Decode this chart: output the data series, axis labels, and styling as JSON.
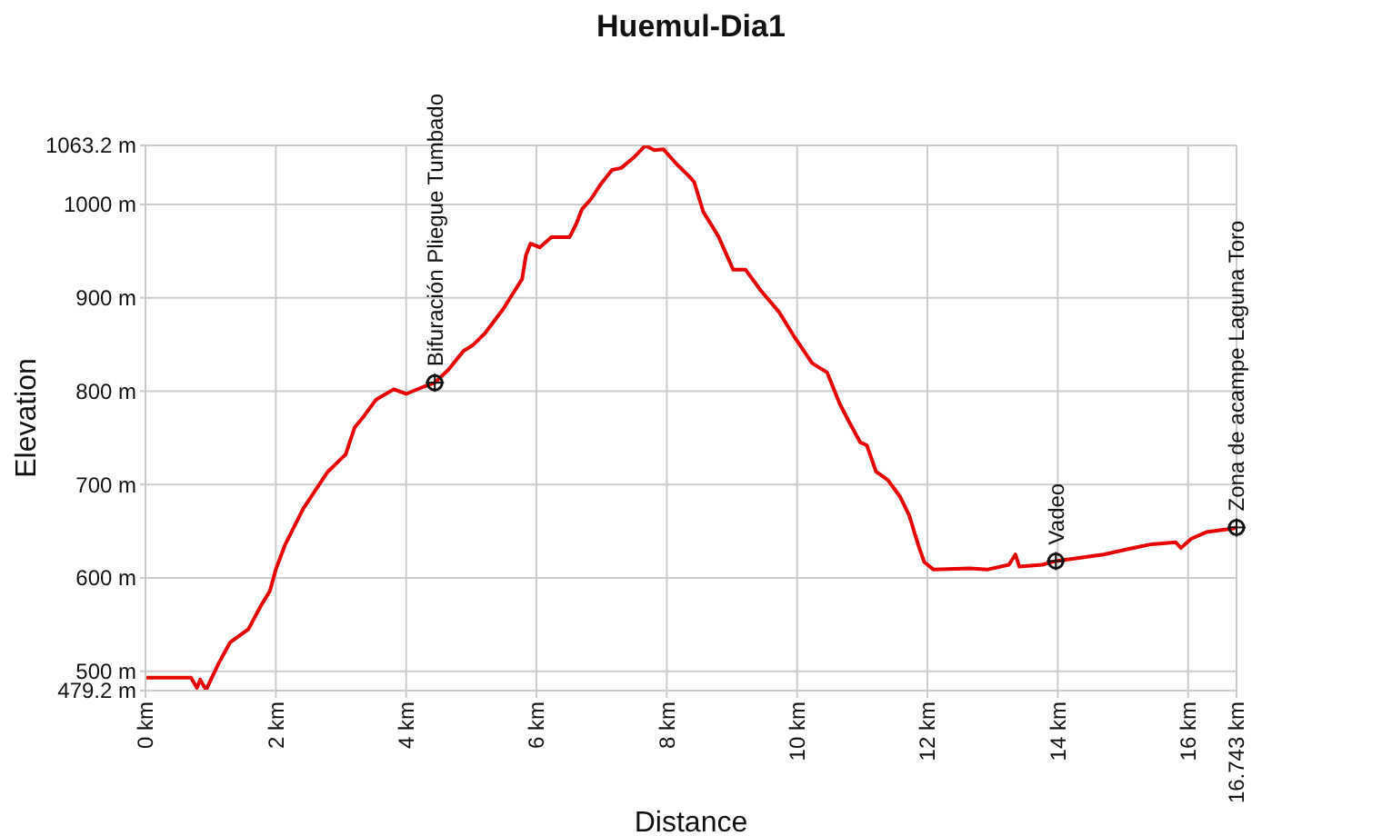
{
  "chart_data": {
    "type": "line",
    "title": "Huemul-Dia1",
    "xlabel": "Distance",
    "ylabel": "Elevation",
    "x": [
      0,
      0.7,
      0.79,
      0.84,
      0.93,
      1.12,
      1.3,
      1.58,
      1.77,
      1.91,
      2.0,
      2.14,
      2.42,
      2.6,
      2.79,
      2.98,
      3.07,
      3.21,
      3.35,
      3.54,
      3.81,
      4.0,
      4.28,
      4.44,
      4.65,
      4.88,
      5.02,
      5.21,
      5.49,
      5.67,
      5.78,
      5.84,
      5.91,
      6.05,
      6.23,
      6.51,
      6.61,
      6.7,
      6.84,
      6.98,
      7.16,
      7.3,
      7.49,
      7.67,
      7.81,
      7.95,
      8.14,
      8.33,
      8.42,
      8.56,
      8.79,
      9.02,
      9.21,
      9.44,
      9.72,
      9.95,
      10.23,
      10.46,
      10.65,
      10.79,
      10.97,
      11.07,
      11.21,
      11.39,
      11.58,
      11.72,
      11.86,
      11.95,
      12.09,
      12.65,
      12.93,
      13.25,
      13.35,
      13.41,
      13.76,
      13.97,
      14.7,
      15.16,
      15.44,
      15.81,
      15.89,
      16.05,
      16.28,
      16.7,
      16.743
    ],
    "series": [
      {
        "color": "#e60000",
        "values": [
          493,
          493,
          482,
          491,
          480,
          508,
          531,
          545,
          570,
          586,
          609,
          635,
          674,
          693,
          713,
          726,
          732,
          761,
          773,
          791,
          802,
          797,
          805,
          809,
          823,
          843,
          849,
          862,
          888,
          908,
          920,
          946,
          958,
          954,
          965,
          965,
          979,
          995,
          1006,
          1021,
          1037,
          1039,
          1050,
          1063,
          1058,
          1059,
          1044,
          1031,
          1024,
          992,
          966,
          930,
          930,
          908,
          885,
          859,
          830,
          820,
          787,
          768,
          745,
          742,
          714,
          705,
          687,
          667,
          635,
          617,
          609,
          610,
          609,
          614,
          625,
          612,
          614,
          618,
          625,
          632,
          636,
          638,
          632,
          642,
          649,
          653,
          654
        ]
      }
    ],
    "xlim": [
      0,
      16.743
    ],
    "ylim": [
      479.2,
      1063.2
    ],
    "xticks": [
      {
        "value": 0,
        "label": "0 km"
      },
      {
        "value": 2,
        "label": "2 km"
      },
      {
        "value": 4,
        "label": "4 km"
      },
      {
        "value": 6,
        "label": "6 km"
      },
      {
        "value": 8,
        "label": "8 km"
      },
      {
        "value": 10,
        "label": "10 km"
      },
      {
        "value": 12,
        "label": "12 km"
      },
      {
        "value": 14,
        "label": "14 km"
      },
      {
        "value": 16,
        "label": "16 km"
      },
      {
        "value": 16.743,
        "label": "16.743 km"
      }
    ],
    "yticks": [
      {
        "value": 479.2,
        "label": "479.2 m"
      },
      {
        "value": 500,
        "label": "500 m"
      },
      {
        "value": 600,
        "label": "600 m"
      },
      {
        "value": 700,
        "label": "700 m"
      },
      {
        "value": 800,
        "label": "800 m"
      },
      {
        "value": 900,
        "label": "900 m"
      },
      {
        "value": 1000,
        "label": "1000 m"
      },
      {
        "value": 1063.2,
        "label": "1063.2 m"
      }
    ],
    "grid": true,
    "annotations": [
      {
        "text": "Bifuración Pliegue Tumbado",
        "x": 4.44,
        "y": 809
      },
      {
        "text": "Vadeo",
        "x": 13.97,
        "y": 618
      },
      {
        "text": "Zona de acampe Laguna Toro",
        "x": 16.743,
        "y": 654
      }
    ]
  }
}
